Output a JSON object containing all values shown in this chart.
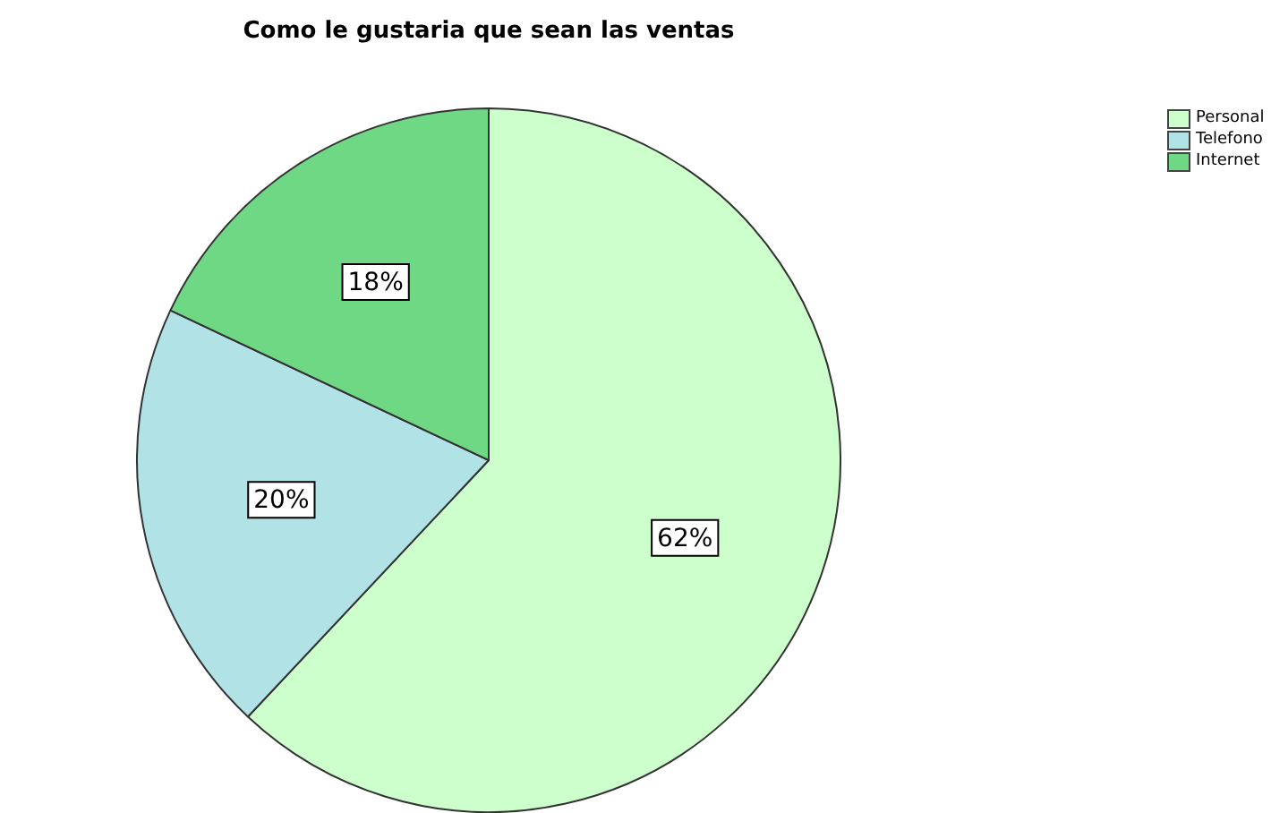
{
  "chart_data": {
    "type": "pie",
    "title": "Como le gustaria que sean las ventas",
    "categories": [
      "Personal",
      "Telefono",
      "Internet"
    ],
    "values": [
      62,
      20,
      18
    ],
    "colors": [
      "#ccffcc",
      "#b0e2e6",
      "#6fd885"
    ],
    "value_labels": [
      "62%",
      "20%",
      "18%"
    ],
    "legend": "top right"
  }
}
